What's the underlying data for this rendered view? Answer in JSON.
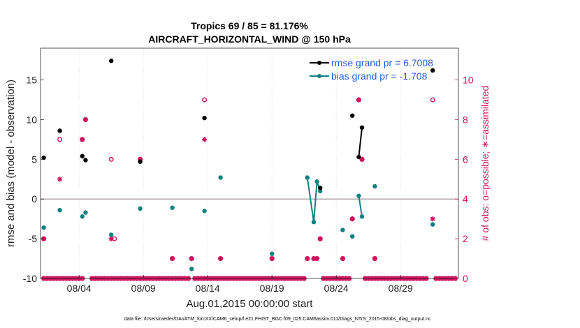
{
  "chart_data": {
    "type": "scatter",
    "title_line1": "Tropics 69 / 85 = 81.176%",
    "title_line2": "AIRCRAFT_HORIZONTAL_WIND @ 150 hPa",
    "xlabel": "Aug.01,2015 00:00:00 start",
    "ylabel_left": "rmse and bias (model - observation)",
    "ylabel_right": "# of obs: o=possible; ∗=assimilated",
    "footnote": "data file: /Users/raeder/DAI/ATM_forcXX/CAM6_setup/f.e21.FHIST_BGC.f09_025.CAM6assim.011/Diags_NTrS_2015-08/obs_diag_output.nc",
    "xlim": [
      0,
      32.5
    ],
    "ylim_left": [
      -10,
      19
    ],
    "ylim_right": [
      0,
      11.6
    ],
    "x_ticks": [
      {
        "value": 3,
        "label": "08/04"
      },
      {
        "value": 8,
        "label": "08/09"
      },
      {
        "value": 13,
        "label": "08/14"
      },
      {
        "value": 18,
        "label": "08/19"
      },
      {
        "value": 23,
        "label": "08/24"
      },
      {
        "value": 28,
        "label": "08/29"
      }
    ],
    "y_left_ticks": [
      {
        "value": -10,
        "label": "-10"
      },
      {
        "value": -5,
        "label": "-5"
      },
      {
        "value": 0,
        "label": "0"
      },
      {
        "value": 5,
        "label": "5"
      },
      {
        "value": 10,
        "label": "10"
      },
      {
        "value": 15,
        "label": "15"
      }
    ],
    "y_right_ticks": [
      {
        "value": 0,
        "label": "0"
      },
      {
        "value": 2,
        "label": "2"
      },
      {
        "value": 4,
        "label": "4"
      },
      {
        "value": 6,
        "label": "6"
      },
      {
        "value": 8,
        "label": "8"
      },
      {
        "value": 10,
        "label": "10"
      }
    ],
    "zero_line": 0,
    "legend": {
      "placement": "top-right",
      "rmse_label": "rmse grand pr = 6.7008",
      "bias_label": "bias grand pr = -1.708"
    },
    "colors": {
      "rmse": "#000000",
      "bias": "#0e8080",
      "obs": "#d0115e",
      "legend_text": "#1f5fdc",
      "zero_line": "#b5a8b0",
      "grid": "#dcdcdc"
    },
    "rmse": [
      [
        0.25,
        5.2
      ],
      [
        1.5,
        8.6
      ],
      [
        3.25,
        5.4
      ],
      [
        3.5,
        4.9
      ],
      [
        5.5,
        17.4
      ],
      [
        7.75,
        4.7
      ],
      [
        12.75,
        10.2
      ],
      [
        21.75,
        1.4
      ],
      [
        24.25,
        10.5
      ],
      [
        24.75,
        5.3
      ],
      [
        25.0,
        9.0
      ],
      [
        30.5,
        16.2
      ]
    ],
    "rmse_segments": [
      [
        [
          24.75,
          5.3
        ],
        [
          25.0,
          9.0
        ]
      ]
    ],
    "bias": [
      [
        0.25,
        -3.6
      ],
      [
        1.5,
        -1.4
      ],
      [
        3.25,
        -2.2
      ],
      [
        3.5,
        -1.7
      ],
      [
        5.5,
        -4.5
      ],
      [
        7.75,
        -1.2
      ],
      [
        10.25,
        -1.1
      ],
      [
        11.75,
        -8.8
      ],
      [
        12.75,
        -1.5
      ],
      [
        14.0,
        2.7
      ],
      [
        18.0,
        -6.9
      ],
      [
        20.75,
        2.7
      ],
      [
        21.25,
        -2.9
      ],
      [
        21.5,
        2.2
      ],
      [
        21.75,
        1.0
      ],
      [
        23.5,
        -3.9
      ],
      [
        24.25,
        -4.7
      ],
      [
        24.75,
        0.4
      ],
      [
        25.0,
        -2.2
      ],
      [
        26.0,
        1.6
      ],
      [
        30.5,
        -3.2
      ]
    ],
    "bias_segments": [
      [
        [
          20.75,
          2.7
        ],
        [
          21.25,
          -2.9
        ],
        [
          21.5,
          2.2
        ],
        [
          21.75,
          1.0
        ]
      ],
      [
        [
          24.75,
          0.4
        ],
        [
          25.0,
          -2.2
        ]
      ]
    ],
    "obs_possible": [
      [
        0.25,
        2
      ],
      [
        1.5,
        7
      ],
      [
        3.25,
        7
      ],
      [
        3.5,
        8
      ],
      [
        5.5,
        6
      ],
      [
        5.75,
        2
      ],
      [
        7.75,
        6
      ],
      [
        10.25,
        1
      ],
      [
        11.75,
        1
      ],
      [
        12.75,
        9
      ],
      [
        14.0,
        1
      ],
      [
        18.0,
        1
      ],
      [
        20.75,
        1
      ],
      [
        21.25,
        1
      ],
      [
        21.5,
        1
      ],
      [
        21.75,
        2
      ],
      [
        23.5,
        1
      ],
      [
        24.25,
        3
      ],
      [
        24.75,
        9
      ],
      [
        25.0,
        6
      ],
      [
        26.0,
        1
      ],
      [
        30.5,
        9
      ]
    ],
    "obs_assimilated": [
      [
        0.25,
        2
      ],
      [
        1.5,
        5
      ],
      [
        3.25,
        7
      ],
      [
        3.5,
        8
      ],
      [
        5.5,
        2
      ],
      [
        7.75,
        6
      ],
      [
        10.25,
        1
      ],
      [
        11.75,
        1
      ],
      [
        12.75,
        7
      ],
      [
        14.0,
        1
      ],
      [
        18.0,
        1
      ],
      [
        20.75,
        1
      ],
      [
        21.25,
        1
      ],
      [
        21.5,
        1
      ],
      [
        21.75,
        2
      ],
      [
        23.5,
        1
      ],
      [
        24.25,
        3
      ],
      [
        24.75,
        9
      ],
      [
        25.0,
        6
      ],
      [
        26.0,
        1
      ],
      [
        30.5,
        3
      ]
    ],
    "obs_zero_x": [
      0.25,
      0.5,
      0.75,
      1.0,
      1.25,
      1.5,
      1.75,
      2.0,
      2.25,
      2.5,
      2.75,
      3.0,
      3.25,
      4.0,
      4.25,
      4.5,
      4.75,
      5.0,
      5.25,
      5.5,
      5.75,
      6.0,
      6.25,
      6.5,
      6.75,
      7.0,
      7.25,
      7.5,
      7.75,
      8.0,
      8.25,
      8.5,
      8.75,
      9.0,
      9.25,
      9.5,
      9.75,
      10.0,
      10.25,
      10.5,
      10.75,
      11.0,
      11.25,
      11.5,
      12.0,
      12.25,
      12.5,
      12.75,
      13.0,
      13.25,
      13.5,
      13.75,
      14.0,
      14.25,
      14.5,
      14.75,
      15.0,
      15.25,
      15.5,
      15.75,
      16.0,
      16.25,
      16.5,
      16.75,
      17.0,
      17.25,
      17.5,
      17.75,
      18.0,
      18.25,
      18.5,
      18.75,
      19.0,
      19.25,
      19.5,
      19.75,
      20.0,
      20.25,
      20.5,
      22.0,
      22.25,
      22.5,
      22.75,
      23.0,
      23.25,
      23.5,
      23.75,
      24.0,
      25.25,
      25.5,
      25.75,
      26.0,
      26.25,
      26.5,
      26.75,
      27.0,
      27.25,
      27.5,
      27.75,
      28.0,
      28.25,
      28.5,
      28.75,
      29.0,
      29.25,
      29.5,
      29.75,
      30.0,
      30.75,
      31.0,
      31.25,
      31.5,
      31.75,
      32.0,
      32.25
    ]
  }
}
